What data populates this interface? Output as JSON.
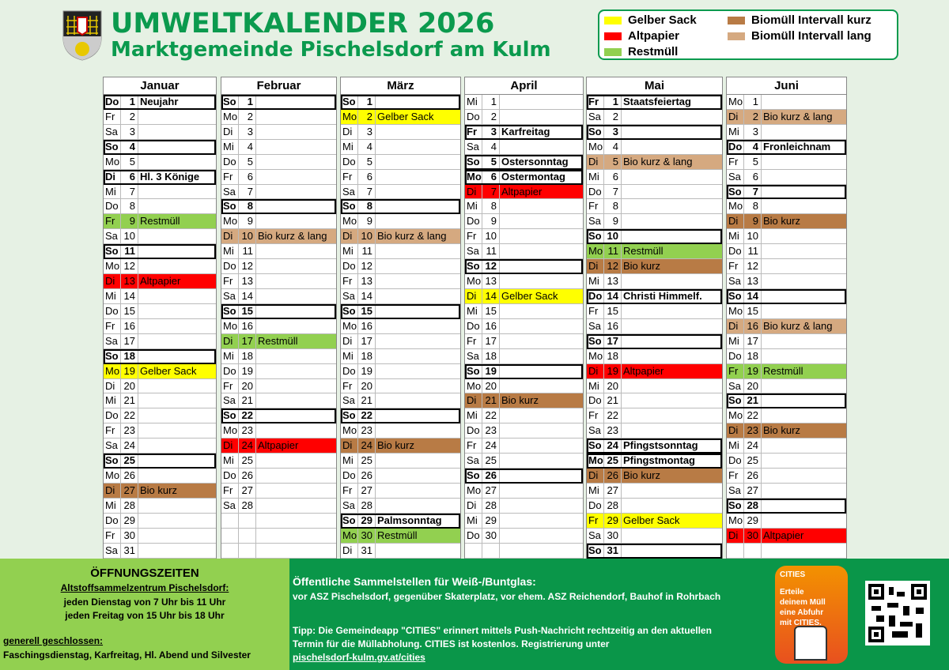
{
  "header": {
    "title": "UMWELTKALENDER 2026",
    "subtitle": "Marktgemeinde Pischelsdorf am Kulm"
  },
  "legend": [
    {
      "label": "Gelber Sack",
      "color": "#ffff00"
    },
    {
      "label": "Altpapier",
      "color": "#ff0000"
    },
    {
      "label": "Restmüll",
      "color": "#92d050"
    },
    {
      "label": "Biomüll Intervall kurz",
      "color": "#b87b45"
    },
    {
      "label": "Biomüll Intervall lang",
      "color": "#d5a980"
    }
  ],
  "months": [
    {
      "name": "Januar",
      "days": [
        {
          "w": "Do",
          "d": "1",
          "t": "Neujahr",
          "c": "b"
        },
        {
          "w": "Fr",
          "d": "2"
        },
        {
          "w": "Sa",
          "d": "3"
        },
        {
          "w": "So",
          "d": "4",
          "c": "b"
        },
        {
          "w": "Mo",
          "d": "5"
        },
        {
          "w": "Di",
          "d": "6",
          "t": "Hl. 3 Könige",
          "c": "b"
        },
        {
          "w": "Mi",
          "d": "7"
        },
        {
          "w": "Do",
          "d": "8"
        },
        {
          "w": "Fr",
          "d": "9",
          "t": "Restmüll",
          "c": "rest"
        },
        {
          "w": "Sa",
          "d": "10"
        },
        {
          "w": "So",
          "d": "11",
          "c": "b"
        },
        {
          "w": "Mo",
          "d": "12"
        },
        {
          "w": "Di",
          "d": "13",
          "t": "Altpapier",
          "c": "alt"
        },
        {
          "w": "Mi",
          "d": "14"
        },
        {
          "w": "Do",
          "d": "15"
        },
        {
          "w": "Fr",
          "d": "16"
        },
        {
          "w": "Sa",
          "d": "17"
        },
        {
          "w": "So",
          "d": "18",
          "c": "b"
        },
        {
          "w": "Mo",
          "d": "19",
          "t": "Gelber Sack",
          "c": "gelb"
        },
        {
          "w": "Di",
          "d": "20"
        },
        {
          "w": "Mi",
          "d": "21"
        },
        {
          "w": "Do",
          "d": "22"
        },
        {
          "w": "Fr",
          "d": "23"
        },
        {
          "w": "Sa",
          "d": "24"
        },
        {
          "w": "So",
          "d": "25",
          "c": "b"
        },
        {
          "w": "Mo",
          "d": "26"
        },
        {
          "w": "Di",
          "d": "27",
          "t": "Bio kurz",
          "c": "biok"
        },
        {
          "w": "Mi",
          "d": "28"
        },
        {
          "w": "Do",
          "d": "29"
        },
        {
          "w": "Fr",
          "d": "30"
        },
        {
          "w": "Sa",
          "d": "31"
        }
      ]
    },
    {
      "name": "Februar",
      "days": [
        {
          "w": "So",
          "d": "1",
          "c": "b"
        },
        {
          "w": "Mo",
          "d": "2"
        },
        {
          "w": "Di",
          "d": "3"
        },
        {
          "w": "Mi",
          "d": "4"
        },
        {
          "w": "Do",
          "d": "5"
        },
        {
          "w": "Fr",
          "d": "6"
        },
        {
          "w": "Sa",
          "d": "7"
        },
        {
          "w": "So",
          "d": "8",
          "c": "b"
        },
        {
          "w": "Mo",
          "d": "9"
        },
        {
          "w": "Di",
          "d": "10",
          "t": "Bio kurz & lang",
          "c": "biol"
        },
        {
          "w": "Mi",
          "d": "11"
        },
        {
          "w": "Do",
          "d": "12"
        },
        {
          "w": "Fr",
          "d": "13"
        },
        {
          "w": "Sa",
          "d": "14"
        },
        {
          "w": "So",
          "d": "15",
          "c": "b"
        },
        {
          "w": "Mo",
          "d": "16"
        },
        {
          "w": "Di",
          "d": "17",
          "t": "Restmüll",
          "c": "rest"
        },
        {
          "w": "Mi",
          "d": "18"
        },
        {
          "w": "Do",
          "d": "19"
        },
        {
          "w": "Fr",
          "d": "20"
        },
        {
          "w": "Sa",
          "d": "21"
        },
        {
          "w": "So",
          "d": "22",
          "c": "b"
        },
        {
          "w": "Mo",
          "d": "23"
        },
        {
          "w": "Di",
          "d": "24",
          "t": "Altpapier",
          "c": "alt"
        },
        {
          "w": "Mi",
          "d": "25"
        },
        {
          "w": "Do",
          "d": "26"
        },
        {
          "w": "Fr",
          "d": "27"
        },
        {
          "w": "Sa",
          "d": "28"
        },
        {},
        {},
        {}
      ]
    },
    {
      "name": "März",
      "days": [
        {
          "w": "So",
          "d": "1",
          "c": "b"
        },
        {
          "w": "Mo",
          "d": "2",
          "t": "Gelber Sack",
          "c": "gelb"
        },
        {
          "w": "Di",
          "d": "3"
        },
        {
          "w": "Mi",
          "d": "4"
        },
        {
          "w": "Do",
          "d": "5"
        },
        {
          "w": "Fr",
          "d": "6"
        },
        {
          "w": "Sa",
          "d": "7"
        },
        {
          "w": "So",
          "d": "8",
          "c": "b"
        },
        {
          "w": "Mo",
          "d": "9"
        },
        {
          "w": "Di",
          "d": "10",
          "t": "Bio kurz & lang",
          "c": "biol"
        },
        {
          "w": "Mi",
          "d": "11"
        },
        {
          "w": "Do",
          "d": "12"
        },
        {
          "w": "Fr",
          "d": "13"
        },
        {
          "w": "Sa",
          "d": "14"
        },
        {
          "w": "So",
          "d": "15",
          "c": "b"
        },
        {
          "w": "Mo",
          "d": "16"
        },
        {
          "w": "Di",
          "d": "17"
        },
        {
          "w": "Mi",
          "d": "18"
        },
        {
          "w": "Do",
          "d": "19"
        },
        {
          "w": "Fr",
          "d": "20"
        },
        {
          "w": "Sa",
          "d": "21"
        },
        {
          "w": "So",
          "d": "22",
          "c": "b"
        },
        {
          "w": "Mo",
          "d": "23"
        },
        {
          "w": "Di",
          "d": "24",
          "t": "Bio kurz",
          "c": "biok"
        },
        {
          "w": "Mi",
          "d": "25"
        },
        {
          "w": "Do",
          "d": "26"
        },
        {
          "w": "Fr",
          "d": "27"
        },
        {
          "w": "Sa",
          "d": "28"
        },
        {
          "w": "So",
          "d": "29",
          "t": "Palmsonntag",
          "c": "b"
        },
        {
          "w": "Mo",
          "d": "30",
          "t": "Restmüll",
          "c": "rest"
        },
        {
          "w": "Di",
          "d": "31"
        }
      ]
    },
    {
      "name": "April",
      "days": [
        {
          "w": "Mi",
          "d": "1"
        },
        {
          "w": "Do",
          "d": "2"
        },
        {
          "w": "Fr",
          "d": "3",
          "t": "Karfreitag",
          "c": "b"
        },
        {
          "w": "Sa",
          "d": "4"
        },
        {
          "w": "So",
          "d": "5",
          "t": "Ostersonntag",
          "c": "b"
        },
        {
          "w": "Mo",
          "d": "6",
          "t": "Ostermontag",
          "c": "b"
        },
        {
          "w": "Di",
          "d": "7",
          "t": "Altpapier",
          "c": "alt"
        },
        {
          "w": "Mi",
          "d": "8"
        },
        {
          "w": "Do",
          "d": "9"
        },
        {
          "w": "Fr",
          "d": "10"
        },
        {
          "w": "Sa",
          "d": "11"
        },
        {
          "w": "So",
          "d": "12",
          "c": "b"
        },
        {
          "w": "Mo",
          "d": "13"
        },
        {
          "w": "Di",
          "d": "14",
          "t": "Gelber Sack",
          "c": "gelb"
        },
        {
          "w": "Mi",
          "d": "15"
        },
        {
          "w": "Do",
          "d": "16"
        },
        {
          "w": "Fr",
          "d": "17"
        },
        {
          "w": "Sa",
          "d": "18"
        },
        {
          "w": "So",
          "d": "19",
          "c": "b"
        },
        {
          "w": "Mo",
          "d": "20"
        },
        {
          "w": "Di",
          "d": "21",
          "t": "Bio kurz",
          "c": "biok"
        },
        {
          "w": "Mi",
          "d": "22"
        },
        {
          "w": "Do",
          "d": "23"
        },
        {
          "w": "Fr",
          "d": "24"
        },
        {
          "w": "Sa",
          "d": "25"
        },
        {
          "w": "So",
          "d": "26",
          "c": "b"
        },
        {
          "w": "Mo",
          "d": "27"
        },
        {
          "w": "Di",
          "d": "28"
        },
        {
          "w": "Mi",
          "d": "29"
        },
        {
          "w": "Do",
          "d": "30"
        },
        {}
      ]
    },
    {
      "name": "Mai",
      "days": [
        {
          "w": "Fr",
          "d": "1",
          "t": "Staatsfeiertag",
          "c": "b"
        },
        {
          "w": "Sa",
          "d": "2"
        },
        {
          "w": "So",
          "d": "3",
          "c": "b"
        },
        {
          "w": "Mo",
          "d": "4"
        },
        {
          "w": "Di",
          "d": "5",
          "t": "Bio kurz & lang",
          "c": "biol"
        },
        {
          "w": "Mi",
          "d": "6"
        },
        {
          "w": "Do",
          "d": "7"
        },
        {
          "w": "Fr",
          "d": "8"
        },
        {
          "w": "Sa",
          "d": "9"
        },
        {
          "w": "So",
          "d": "10",
          "c": "b"
        },
        {
          "w": "Mo",
          "d": "11",
          "t": "Restmüll",
          "c": "rest"
        },
        {
          "w": "Di",
          "d": "12",
          "t": "Bio kurz",
          "c": "biok"
        },
        {
          "w": "Mi",
          "d": "13"
        },
        {
          "w": "Do",
          "d": "14",
          "t": "Christi Himmelf.",
          "c": "b"
        },
        {
          "w": "Fr",
          "d": "15"
        },
        {
          "w": "Sa",
          "d": "16"
        },
        {
          "w": "So",
          "d": "17",
          "c": "b"
        },
        {
          "w": "Mo",
          "d": "18"
        },
        {
          "w": "Di",
          "d": "19",
          "t": "Altpapier",
          "c": "alt"
        },
        {
          "w": "Mi",
          "d": "20"
        },
        {
          "w": "Do",
          "d": "21"
        },
        {
          "w": "Fr",
          "d": "22"
        },
        {
          "w": "Sa",
          "d": "23"
        },
        {
          "w": "So",
          "d": "24",
          "t": "Pfingstsonntag",
          "c": "b"
        },
        {
          "w": "Mo",
          "d": "25",
          "t": "Pfingstmontag",
          "c": "b"
        },
        {
          "w": "Di",
          "d": "26",
          "t": "Bio kurz",
          "c": "biok"
        },
        {
          "w": "Mi",
          "d": "27"
        },
        {
          "w": "Do",
          "d": "28"
        },
        {
          "w": "Fr",
          "d": "29",
          "t": "Gelber Sack",
          "c": "gelb"
        },
        {
          "w": "Sa",
          "d": "30"
        },
        {
          "w": "So",
          "d": "31",
          "c": "b"
        }
      ]
    },
    {
      "name": "Juni",
      "days": [
        {
          "w": "Mo",
          "d": "1"
        },
        {
          "w": "Di",
          "d": "2",
          "t": "Bio kurz & lang",
          "c": "biol"
        },
        {
          "w": "Mi",
          "d": "3"
        },
        {
          "w": "Do",
          "d": "4",
          "t": "Fronleichnam",
          "c": "b"
        },
        {
          "w": "Fr",
          "d": "5"
        },
        {
          "w": "Sa",
          "d": "6"
        },
        {
          "w": "So",
          "d": "7",
          "c": "b"
        },
        {
          "w": "Mo",
          "d": "8"
        },
        {
          "w": "Di",
          "d": "9",
          "t": "Bio kurz",
          "c": "biok"
        },
        {
          "w": "Mi",
          "d": "10"
        },
        {
          "w": "Do",
          "d": "11"
        },
        {
          "w": "Fr",
          "d": "12"
        },
        {
          "w": "Sa",
          "d": "13"
        },
        {
          "w": "So",
          "d": "14",
          "c": "b"
        },
        {
          "w": "Mo",
          "d": "15"
        },
        {
          "w": "Di",
          "d": "16",
          "t": "Bio kurz & lang",
          "c": "biol"
        },
        {
          "w": "Mi",
          "d": "17"
        },
        {
          "w": "Do",
          "d": "18"
        },
        {
          "w": "Fr",
          "d": "19",
          "t": "Restmüll",
          "c": "rest"
        },
        {
          "w": "Sa",
          "d": "20"
        },
        {
          "w": "So",
          "d": "21",
          "c": "b"
        },
        {
          "w": "Mo",
          "d": "22"
        },
        {
          "w": "Di",
          "d": "23",
          "t": "Bio kurz",
          "c": "biok"
        },
        {
          "w": "Mi",
          "d": "24"
        },
        {
          "w": "Do",
          "d": "25"
        },
        {
          "w": "Fr",
          "d": "26"
        },
        {
          "w": "Sa",
          "d": "27"
        },
        {
          "w": "So",
          "d": "28",
          "c": "b"
        },
        {
          "w": "Mo",
          "d": "29"
        },
        {
          "w": "Di",
          "d": "30",
          "t": "Altpapier",
          "c": "alt"
        },
        {}
      ]
    }
  ],
  "footer": {
    "hours_title": "ÖFFNUNGSZEITEN",
    "center": "Altstoffsammelzentrum Pischelsdorf:",
    "tue": "jeden Dienstag von 7 Uhr bis 11 Uhr",
    "fri": "jeden Freitag von 15 Uhr bis 18 Uhr",
    "closed_title": "generell geschlossen:",
    "closed": "Faschingsdienstag, Karfreitag, Hl. Abend und Silvester",
    "glass_title": "Öffentliche Sammelstellen für Weiß-/Buntglas:",
    "glass": "vor ASZ Pischelsdorf, gegenüber Skaterplatz, vor ehem. ASZ Reichendorf, Bauhof in Rohrbach",
    "tip1": "Tipp: Die Gemeindeapp \"CITIES\" erinnert mittels Push-Nachricht rechtzeitig an den aktuellen",
    "tip2": "Termin für die Müllabholung. CITIES ist kostenlos. Registrierung unter",
    "link": "pischelsdorf-kulm.gv.at/cities",
    "ad_brand": "CITIES",
    "ad_text": "Erteile deinem Müll eine Abfuhr mit CITIES."
  }
}
